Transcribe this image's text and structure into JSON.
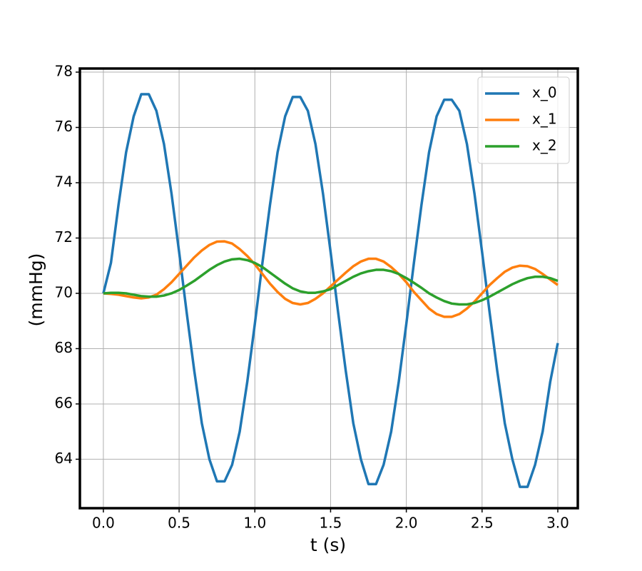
{
  "chart_data": {
    "type": "line",
    "xlabel": "t (s)",
    "ylabel": "(mmHg)",
    "x": [
      0,
      0.05,
      0.1,
      0.15,
      0.2,
      0.25,
      0.3,
      0.35,
      0.4,
      0.45,
      0.5,
      0.55,
      0.6,
      0.65,
      0.7,
      0.75,
      0.8,
      0.85,
      0.9,
      0.95,
      1.0,
      1.05,
      1.1,
      1.15,
      1.2,
      1.25,
      1.3,
      1.35,
      1.4,
      1.45,
      1.5,
      1.55,
      1.6,
      1.65,
      1.7,
      1.75,
      1.8,
      1.85,
      1.9,
      1.95,
      2.0,
      2.05,
      2.1,
      2.15,
      2.2,
      2.25,
      2.3,
      2.35,
      2.4,
      2.45,
      2.5,
      2.55,
      2.6,
      2.65,
      2.7,
      2.75,
      2.8,
      2.85,
      2.9,
      2.95,
      3.0
    ],
    "series": [
      {
        "name": "x_0",
        "color": "#1f77b4",
        "values": [
          70,
          71.1,
          73.2,
          75.1,
          76.4,
          77.2,
          77.2,
          76.6,
          75.4,
          73.6,
          71.5,
          69.3,
          67.2,
          65.3,
          64.0,
          63.2,
          63.2,
          63.8,
          65.0,
          66.8,
          68.9,
          71.1,
          73.2,
          75.1,
          76.4,
          77.1,
          77.1,
          76.6,
          75.4,
          73.6,
          71.5,
          69.3,
          67.2,
          65.3,
          64.0,
          63.1,
          63.1,
          63.8,
          65.0,
          66.8,
          68.9,
          71.1,
          73.2,
          75.1,
          76.4,
          77.0,
          77.0,
          76.6,
          75.4,
          73.6,
          71.5,
          69.3,
          67.2,
          65.3,
          64.0,
          63.0,
          63.0,
          63.8,
          65.0,
          66.8,
          68.2
        ]
      },
      {
        "name": "x_1",
        "color": "#ff7f0e",
        "values": [
          70,
          69.98,
          69.95,
          69.9,
          69.85,
          69.82,
          69.85,
          69.95,
          70.15,
          70.4,
          70.7,
          71.0,
          71.3,
          71.55,
          71.75,
          71.87,
          71.88,
          71.8,
          71.6,
          71.35,
          71.05,
          70.7,
          70.35,
          70.05,
          69.8,
          69.65,
          69.6,
          69.65,
          69.8,
          70.0,
          70.25,
          70.5,
          70.75,
          70.98,
          71.15,
          71.25,
          71.25,
          71.15,
          70.95,
          70.7,
          70.4,
          70.05,
          69.75,
          69.45,
          69.25,
          69.15,
          69.15,
          69.25,
          69.45,
          69.7,
          70.0,
          70.3,
          70.55,
          70.78,
          70.93,
          71.0,
          70.98,
          70.88,
          70.7,
          70.5,
          70.3
        ]
      },
      {
        "name": "x_2",
        "color": "#2ca02c",
        "values": [
          70,
          70.02,
          70.02,
          70.0,
          69.95,
          69.9,
          69.88,
          69.88,
          69.92,
          70.0,
          70.12,
          70.28,
          70.45,
          70.65,
          70.85,
          71.02,
          71.15,
          71.23,
          71.25,
          71.2,
          71.1,
          70.95,
          70.75,
          70.55,
          70.35,
          70.18,
          70.07,
          70.02,
          70.02,
          70.07,
          70.15,
          70.3,
          70.45,
          70.6,
          70.72,
          70.8,
          70.85,
          70.85,
          70.8,
          70.7,
          70.55,
          70.38,
          70.2,
          70.0,
          69.85,
          69.72,
          69.63,
          69.6,
          69.6,
          69.65,
          69.75,
          69.88,
          70.03,
          70.18,
          70.33,
          70.45,
          70.55,
          70.6,
          70.6,
          70.55,
          70.45
        ]
      }
    ],
    "xlim": [
      -0.155,
      3.132
    ],
    "ylim": [
      62.23,
      78.13
    ],
    "xticks": [
      {
        "value": 0,
        "label": "0.0"
      },
      0.5,
      {
        "value": 1,
        "label": "1.0"
      },
      1.5,
      {
        "value": 2,
        "label": "2.0"
      },
      2.5,
      {
        "value": 3,
        "label": "3.0"
      }
    ],
    "yticks": [
      64,
      66,
      68,
      70,
      72,
      74,
      76,
      78
    ],
    "grid": true,
    "legend": "upper-right"
  }
}
